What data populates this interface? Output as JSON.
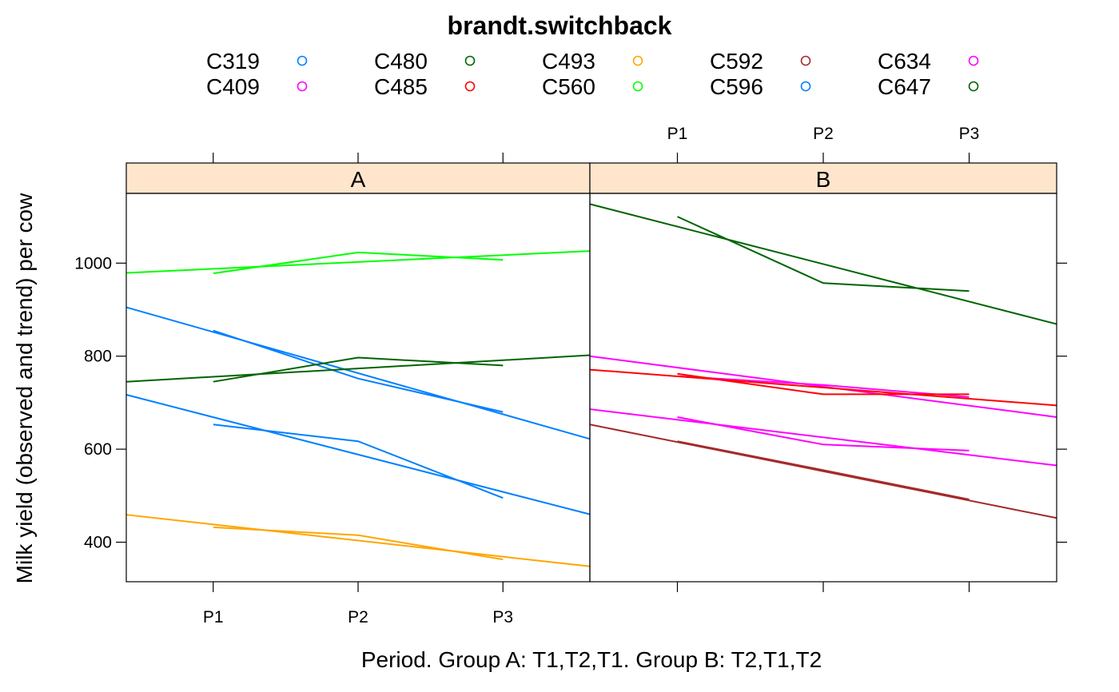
{
  "chart_data": {
    "type": "line",
    "title": "brandt.switchback",
    "xlabel": "Period.  Group A: T1,T2,T1.  Group B: T2,T1,T2",
    "ylabel": "Milk yield (observed and trend) per cow",
    "x_categories": [
      "P1",
      "P2",
      "P3"
    ],
    "ylim": [
      315,
      1150
    ],
    "xlim": [
      0.4,
      3.6
    ],
    "y_ticks": [
      400,
      600,
      800,
      1000
    ],
    "legend_position": "top",
    "legend": [
      {
        "name": "C319",
        "color": "#0080ff"
      },
      {
        "name": "C409",
        "color": "#ff00ff"
      },
      {
        "name": "C480",
        "color": "#006400"
      },
      {
        "name": "C485",
        "color": "#ff0000"
      },
      {
        "name": "C493",
        "color": "#ffa500"
      },
      {
        "name": "C560",
        "color": "#00ff00"
      },
      {
        "name": "C592",
        "color": "#a52a2a"
      },
      {
        "name": "C596",
        "color": "#0080ff"
      },
      {
        "name": "C634",
        "color": "#ff00ff"
      },
      {
        "name": "C647",
        "color": "#006400"
      }
    ],
    "panels": [
      {
        "label": "A",
        "series": [
          {
            "name": "C319",
            "color": "#0080ff",
            "observed": [
              855,
              752,
              680
            ],
            "trend": [
              [
                0.4,
                905
              ],
              [
                3.6,
                622
              ]
            ]
          },
          {
            "name": "C596",
            "color": "#0080ff",
            "observed": [
              653,
              617,
              495
            ],
            "trend": [
              [
                0.4,
                717
              ],
              [
                3.6,
                460
              ]
            ]
          },
          {
            "name": "C480",
            "color": "#006400",
            "observed": [
              745,
              797,
              780
            ],
            "trend": [
              [
                0.4,
                745
              ],
              [
                3.6,
                802
              ]
            ]
          },
          {
            "name": "C560",
            "color": "#00ff00",
            "observed": [
              978,
              1023,
              1007
            ],
            "trend": [
              [
                0.4,
                979
              ],
              [
                3.6,
                1026
              ]
            ]
          },
          {
            "name": "C493",
            "color": "#ffa500",
            "observed": [
              432,
              415,
              363
            ],
            "trend": [
              [
                0.4,
                459
              ],
              [
                3.6,
                348
              ]
            ]
          }
        ]
      },
      {
        "label": "B",
        "series": [
          {
            "name": "C647",
            "color": "#006400",
            "observed": [
              1100,
              957,
              940
            ],
            "trend": [
              [
                0.4,
                1127
              ],
              [
                3.6,
                869
              ]
            ]
          },
          {
            "name": "C409",
            "color": "#ff00ff",
            "observed": [
              669,
              610,
              597
            ],
            "trend": [
              [
                0.4,
                686
              ],
              [
                3.6,
                565
              ]
            ]
          },
          {
            "name": "C634",
            "color": "#ff00ff",
            "observed": [
              757,
              738,
              712
            ],
            "trend": [
              [
                0.4,
                800
              ],
              [
                3.6,
                669
              ]
            ]
          },
          {
            "name": "C485",
            "color": "#ff0000",
            "observed": [
              762,
              718,
              718
            ],
            "trend": [
              [
                0.4,
                771
              ],
              [
                3.6,
                694
              ]
            ]
          },
          {
            "name": "C592",
            "color": "#a52a2a",
            "observed": [
              617,
              555,
              492
            ],
            "trend": [
              [
                0.4,
                653
              ],
              [
                3.6,
                452
              ]
            ]
          }
        ]
      }
    ]
  }
}
